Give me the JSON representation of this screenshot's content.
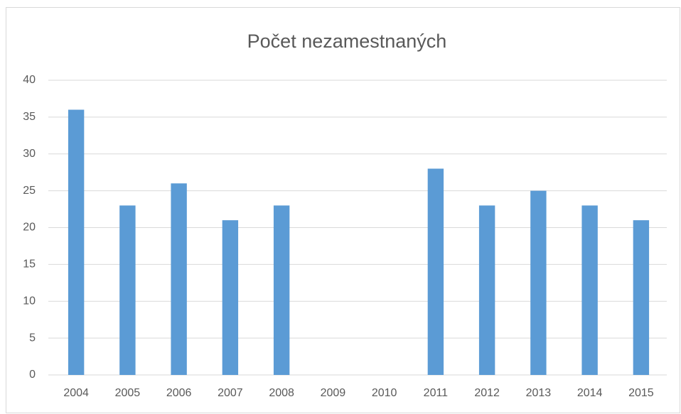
{
  "chart_data": {
    "type": "bar",
    "title": "Počet nezamestnaných",
    "categories": [
      "2004",
      "2005",
      "2006",
      "2007",
      "2008",
      "2009",
      "2010",
      "2011",
      "2012",
      "2013",
      "2014",
      "2015"
    ],
    "values": [
      36,
      23,
      26,
      21,
      23,
      null,
      null,
      28,
      23,
      25,
      23,
      21
    ],
    "color": "#5b9bd5",
    "ylim": [
      0,
      40
    ],
    "yticks": [
      0,
      5,
      10,
      15,
      20,
      25,
      30,
      35,
      40
    ],
    "grid": true
  }
}
